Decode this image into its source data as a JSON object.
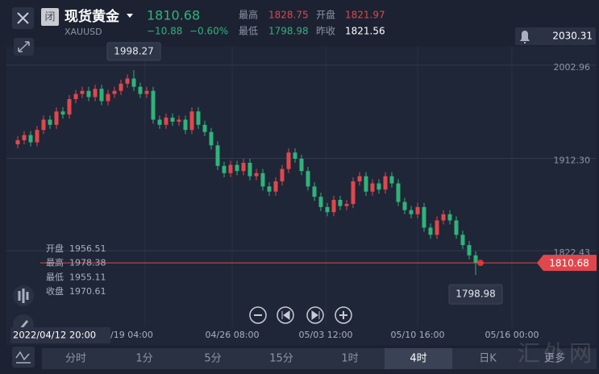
{
  "header": {
    "name": "现货黄金",
    "symbol": "XAUUSD",
    "status": "闭",
    "price": 1810.68,
    "change": "−10.88",
    "change_pct": "−0.60%",
    "quote_labels": [
      "最高",
      "开盘",
      "最低",
      "昨收"
    ],
    "quote_values": [
      1828.75,
      1821.97,
      1798.98,
      1821.56
    ]
  },
  "chart_data": {
    "type": "candlestick",
    "up_color": "#e0474c",
    "down_color": "#2fb37a",
    "ylim": [
      1752.8,
      2030.31
    ],
    "yticks": [
      2030.31,
      2002.96,
      {
        "value": 1912.3,
        "label": "1912.30"
      },
      1822.43
    ],
    "grid": true,
    "open": [
      1926,
      1930,
      1935,
      1928,
      1940,
      1950,
      1945,
      1958,
      1955,
      1970,
      1975,
      1978,
      1972,
      1980,
      1968,
      1975,
      1978,
      1985,
      1990,
      1982,
      1975,
      1978,
      1950,
      1945,
      1952,
      1948,
      1950,
      1940,
      1958,
      1945,
      1938,
      1925,
      1905,
      1898,
      1906,
      1900,
      1908,
      1895,
      1898,
      1885,
      1880,
      1890,
      1902,
      1918,
      1912,
      1900,
      1885,
      1875,
      1865,
      1860,
      1872,
      1866,
      1868,
      1890,
      1895,
      1880,
      1888,
      1882,
      1895,
      1888,
      1870,
      1862,
      1858,
      1865,
      1845,
      1838,
      1852,
      1858,
      1852,
      1838,
      1828,
      1818
    ],
    "high": [
      1934,
      1939,
      1939,
      1944,
      1954,
      1954,
      1962,
      1962,
      1974,
      1979,
      1982,
      1982,
      1984,
      1984,
      1979,
      1982,
      1989,
      1994,
      1998.27,
      1986,
      1982,
      1982,
      1954,
      1956,
      1956,
      1954,
      1954,
      1962,
      1962,
      1949,
      1942,
      1929,
      1909,
      1910,
      1910,
      1912,
      1912,
      1902,
      1902,
      1889,
      1894,
      1906,
      1922,
      1922,
      1916,
      1904,
      1889,
      1879,
      1869,
      1876,
      1876,
      1872,
      1894,
      1899,
      1899,
      1892,
      1892,
      1899,
      1899,
      1892,
      1874,
      1866,
      1869,
      1869,
      1849,
      1856,
      1862,
      1862,
      1856,
      1842,
      1832,
      1822
    ],
    "low": [
      1922,
      1926,
      1924,
      1924,
      1936,
      1941,
      1941,
      1951,
      1951,
      1966,
      1971,
      1968,
      1968,
      1964,
      1964,
      1971,
      1974,
      1981,
      1978,
      1971,
      1971,
      1946,
      1941,
      1941,
      1944,
      1944,
      1936,
      1936,
      1941,
      1934,
      1921,
      1901,
      1894,
      1894,
      1896,
      1896,
      1891,
      1891,
      1881,
      1876,
      1876,
      1886,
      1898,
      1908,
      1896,
      1881,
      1871,
      1861,
      1856,
      1856,
      1862,
      1862,
      1864,
      1886,
      1876,
      1876,
      1878,
      1878,
      1884,
      1866,
      1858,
      1854,
      1854,
      1841,
      1834,
      1834,
      1848,
      1848,
      1834,
      1824,
      1814,
      1798.98
    ],
    "close": [
      1930,
      1935,
      1928,
      1940,
      1950,
      1945,
      1958,
      1955,
      1970,
      1975,
      1978,
      1972,
      1980,
      1968,
      1975,
      1978,
      1985,
      1990,
      1982,
      1975,
      1978,
      1950,
      1945,
      1952,
      1948,
      1950,
      1940,
      1958,
      1945,
      1938,
      1925,
      1905,
      1898,
      1906,
      1900,
      1908,
      1895,
      1898,
      1885,
      1880,
      1890,
      1902,
      1918,
      1912,
      1900,
      1885,
      1875,
      1865,
      1860,
      1872,
      1866,
      1868,
      1890,
      1895,
      1880,
      1888,
      1882,
      1895,
      1888,
      1870,
      1862,
      1858,
      1865,
      1845,
      1838,
      1852,
      1858,
      1852,
      1838,
      1828,
      1818,
      1810.68
    ],
    "x_labels": [
      "/19 04:00",
      "04/26 08:00",
      "05/03 12:00",
      "05/10 16:00",
      "05/16 00:00"
    ]
  },
  "crosshair": {
    "time": "2022/04/12 20:00",
    "labels": [
      "开盘",
      "最高",
      "最低",
      "收盘"
    ],
    "values": [
      1956.51,
      1978.38,
      1955.11,
      1970.61
    ]
  },
  "toolbar": {
    "tabs": [
      "分时",
      "1分",
      "5分",
      "15分",
      "1时",
      "4时",
      "日K",
      "更多"
    ],
    "active": 5
  },
  "watermark": "汇外网"
}
